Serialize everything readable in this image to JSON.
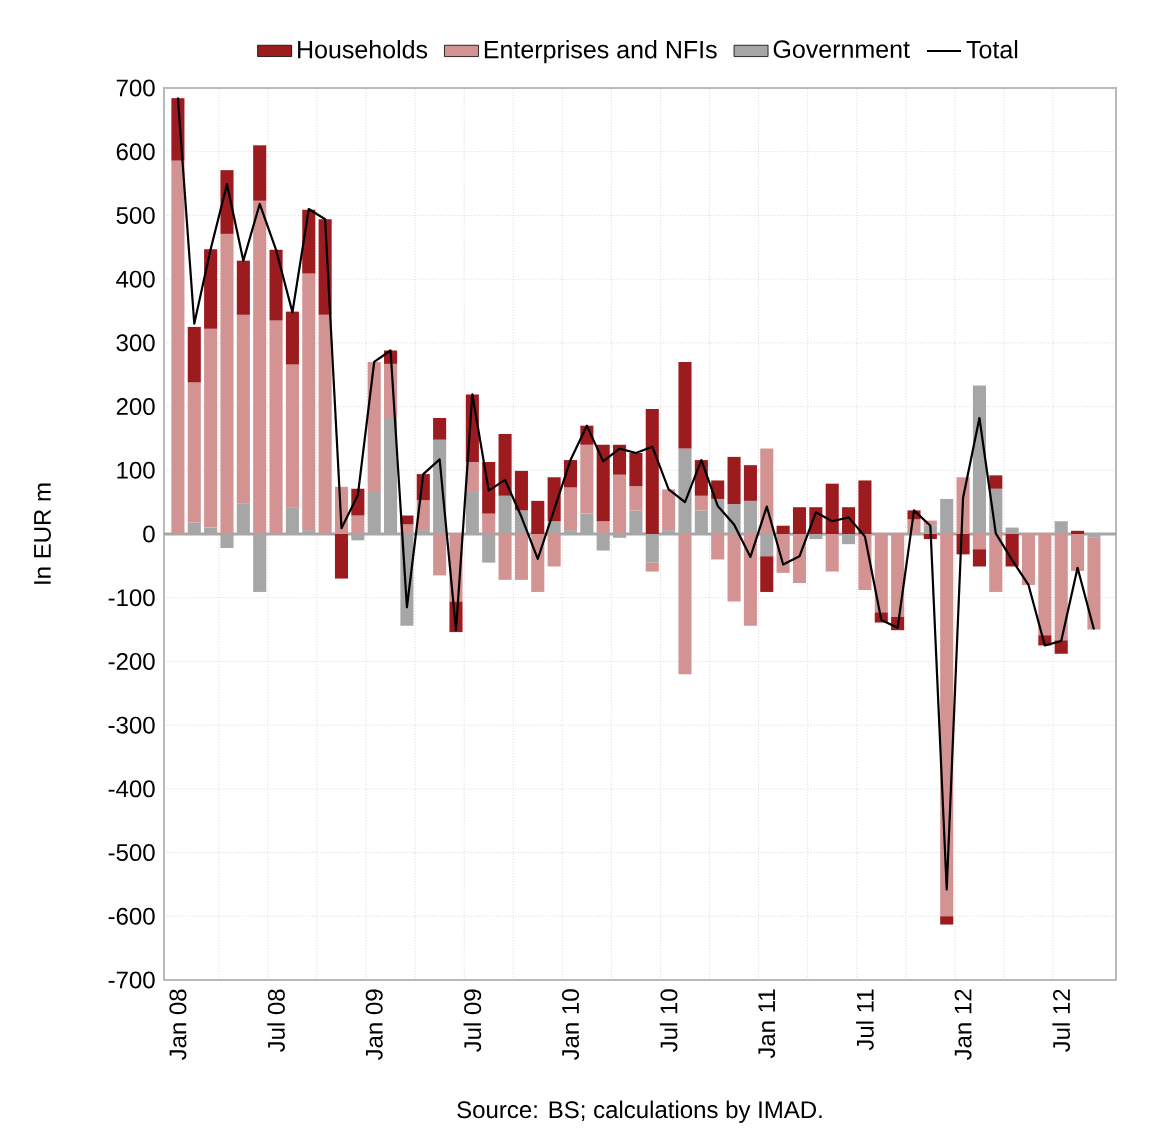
{
  "chart_data": {
    "type": "bar",
    "stacked": true,
    "ylabel": "In EUR m",
    "categories": [
      "Jan 08",
      null,
      null,
      null,
      null,
      null,
      "Jul 08",
      null,
      null,
      null,
      null,
      null,
      "Jan 09",
      null,
      null,
      null,
      null,
      null,
      "Jul 09",
      null,
      null,
      null,
      null,
      null,
      "Jan 10",
      null,
      null,
      null,
      null,
      null,
      "Jul 10",
      null,
      null,
      null,
      null,
      null,
      "Jan 11",
      null,
      null,
      null,
      null,
      null,
      "Jul 11",
      null,
      null,
      null,
      null,
      null,
      "Jan 12",
      null,
      null,
      null,
      null,
      null,
      "Jul 12",
      null,
      null
    ],
    "series": [
      {
        "name": "Government",
        "color": "#a6a6a6",
        "values": [
          0,
          18,
          10,
          -22,
          48,
          -91,
          0,
          42,
          6,
          0,
          null,
          -10,
          66,
          182,
          -144,
          6,
          148,
          null,
          66,
          -45,
          60,
          37,
          0,
          20,
          6,
          32,
          -26,
          -6,
          37,
          -45,
          6,
          134,
          37,
          55,
          47,
          52,
          -35,
          0,
          0,
          -8,
          0,
          -16,
          0,
          null,
          null,
          0,
          13,
          55,
          0,
          233,
          71,
          10,
          0,
          0,
          20,
          0,
          -6
        ]
      },
      {
        "name": "Enterprises and NFIs",
        "color": "#d39393",
        "values": [
          586,
          220,
          312,
          471,
          296,
          523,
          335,
          224,
          403,
          344,
          74,
          29,
          204,
          85,
          15,
          47,
          -65,
          -106,
          47,
          32,
          -72,
          -72,
          -91,
          -51,
          67,
          108,
          20,
          93,
          38,
          -14,
          64,
          -220,
          23,
          -40,
          -106,
          -144,
          134,
          -61,
          -77,
          0,
          -59,
          0,
          -88,
          -123,
          -130,
          23,
          8,
          -600,
          89,
          -24,
          -91,
          0,
          -80,
          -159,
          -167,
          -58,
          -144
        ]
      },
      {
        "name": "Households",
        "color": "#9b1b1f",
        "values": [
          98,
          87,
          125,
          100,
          85,
          87,
          111,
          83,
          100,
          150,
          -70,
          42,
          0,
          21,
          14,
          41,
          34,
          -48,
          106,
          81,
          97,
          62,
          52,
          69,
          43,
          30,
          120,
          47,
          52,
          196,
          0,
          136,
          56,
          29,
          74,
          56,
          -56,
          13,
          42,
          42,
          79,
          42,
          84,
          -16,
          -21,
          14,
          -8,
          -13,
          -32,
          -27,
          21,
          -51,
          0,
          -16,
          -21,
          5,
          0
        ]
      },
      {
        "name": "Total",
        "type": "line",
        "color": "#000000",
        "values": [
          685,
          330,
          447,
          549,
          429,
          518,
          446,
          348,
          510,
          494,
          9,
          61,
          270,
          288,
          -115,
          94,
          117,
          -151,
          219,
          68,
          85,
          27,
          -39,
          38,
          116,
          170,
          114,
          134,
          127,
          137,
          70,
          50,
          116,
          44,
          15,
          -36,
          43,
          -48,
          -35,
          34,
          20,
          26,
          -4,
          -135,
          -147,
          37,
          13,
          -558,
          57,
          182,
          1,
          -41,
          -80,
          -175,
          -168,
          -53,
          -150
        ]
      }
    ],
    "ylim": [
      -700,
      700
    ],
    "yticks": [
      -700,
      -600,
      -500,
      -400,
      -300,
      -200,
      -100,
      0,
      100,
      200,
      300,
      400,
      500,
      600,
      700
    ],
    "grid": true,
    "legend": "top",
    "annotations": [
      "Source: BS; calculations by IMAD."
    ]
  }
}
